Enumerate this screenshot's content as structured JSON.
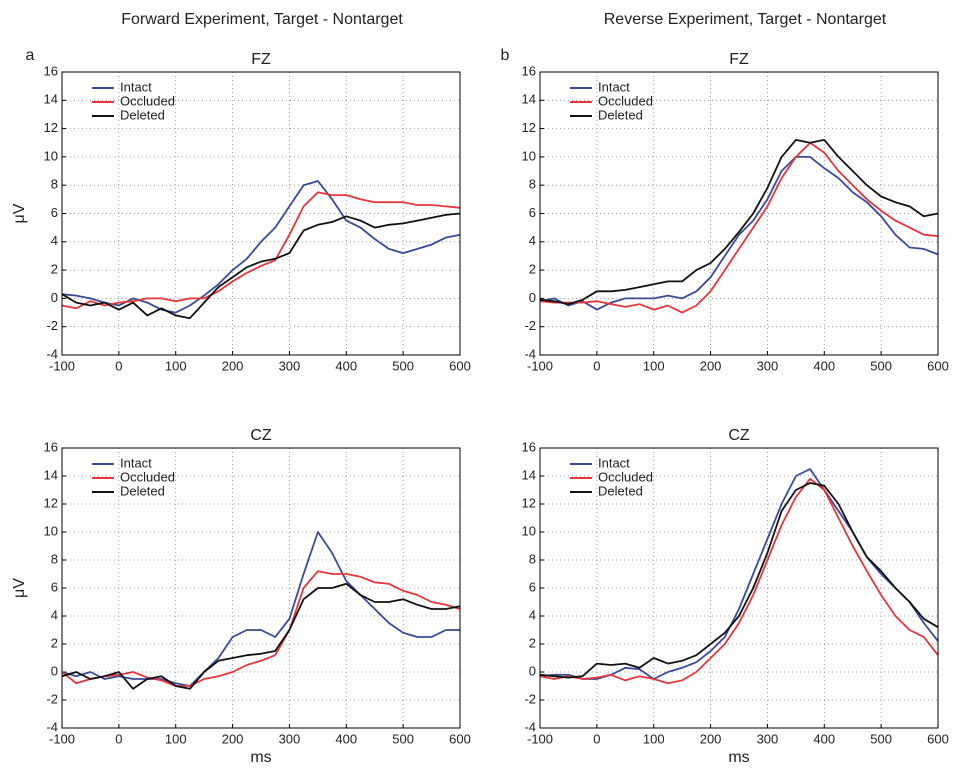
{
  "headers": [
    {
      "title": "Forward Experiment, Target - Nontarget",
      "letter": "a"
    },
    {
      "title": "Reverse Experiment, Target - Nontarget",
      "letter": "b"
    }
  ],
  "chart_data": [
    {
      "type": "line",
      "title": "FZ",
      "ylabel": "μV",
      "x": [
        -100,
        -75,
        -50,
        -25,
        0,
        25,
        50,
        75,
        100,
        125,
        150,
        175,
        200,
        225,
        250,
        275,
        300,
        325,
        350,
        375,
        400,
        425,
        450,
        475,
        500,
        525,
        550,
        575,
        600
      ],
      "series": [
        {
          "name": "Intact",
          "color": "#3a4a9a",
          "values": [
            0.3,
            0.2,
            0,
            -0.3,
            -0.5,
            0,
            -0.3,
            -0.8,
            -1,
            -0.5,
            0.2,
            1,
            2,
            2.8,
            4,
            5,
            6.5,
            8,
            8.3,
            7,
            5.5,
            5,
            4.2,
            3.5,
            3.2,
            3.5,
            3.8,
            4.3,
            4.5
          ]
        },
        {
          "name": "Occluded",
          "color": "#e8353a",
          "values": [
            -0.5,
            -0.7,
            -0.2,
            -0.5,
            -0.3,
            -0.2,
            0,
            0,
            -0.2,
            0,
            0,
            0.5,
            1.2,
            1.8,
            2.3,
            2.7,
            4.5,
            6.5,
            7.5,
            7.3,
            7.3,
            7,
            6.8,
            6.8,
            6.8,
            6.6,
            6.6,
            6.5,
            6.4
          ]
        },
        {
          "name": "Deleted",
          "color": "#111111",
          "values": [
            0.3,
            -0.3,
            -0.5,
            -0.3,
            -0.8,
            -0.3,
            -1.2,
            -0.7,
            -1.2,
            -1.4,
            -0.3,
            0.8,
            1.5,
            2.2,
            2.6,
            2.8,
            3.2,
            4.8,
            5.2,
            5.4,
            5.8,
            5.5,
            5,
            5.2,
            5.3,
            5.5,
            5.7,
            5.9,
            6
          ]
        }
      ],
      "xlim": [
        -100,
        600
      ],
      "xticks": [
        -100,
        0,
        100,
        200,
        300,
        400,
        500,
        600
      ],
      "ylim": [
        -4,
        16
      ],
      "yticks": [
        -4,
        -2,
        0,
        2,
        4,
        6,
        8,
        10,
        12,
        14,
        16
      ],
      "grid": true,
      "legend": "upper-left"
    },
    {
      "type": "line",
      "title": "FZ",
      "x": [
        -100,
        -75,
        -50,
        -25,
        0,
        25,
        50,
        75,
        100,
        125,
        150,
        175,
        200,
        225,
        250,
        275,
        300,
        325,
        350,
        375,
        400,
        425,
        450,
        475,
        500,
        525,
        550,
        575,
        600
      ],
      "series": [
        {
          "name": "Intact",
          "color": "#3a4a9a",
          "values": [
            -0.2,
            0,
            -0.5,
            -0.2,
            -0.8,
            -0.3,
            0,
            0,
            0,
            0.2,
            0,
            0.5,
            1.5,
            3,
            4.5,
            5.5,
            7,
            9,
            10,
            10,
            9.2,
            8.5,
            7.5,
            6.8,
            5.8,
            4.5,
            3.6,
            3.5,
            3.1
          ]
        },
        {
          "name": "Occluded",
          "color": "#e8353a",
          "values": [
            -0.2,
            -0.3,
            -0.3,
            -0.3,
            -0.2,
            -0.4,
            -0.6,
            -0.4,
            -0.8,
            -0.5,
            -1,
            -0.5,
            0.5,
            2,
            3.5,
            5,
            6.5,
            8.5,
            10,
            11,
            10.3,
            9,
            8,
            7,
            6.2,
            5.5,
            5,
            4.5,
            4.4
          ]
        },
        {
          "name": "Deleted",
          "color": "#111111",
          "values": [
            -0.1,
            -0.2,
            -0.4,
            -0.1,
            0.5,
            0.5,
            0.6,
            0.8,
            1,
            1.2,
            1.2,
            2,
            2.5,
            3.5,
            4.7,
            6,
            7.8,
            10,
            11.2,
            11,
            11.2,
            10,
            9,
            8,
            7.2,
            6.8,
            6.5,
            5.8,
            6
          ]
        }
      ],
      "xlim": [
        -100,
        600
      ],
      "xticks": [
        -100,
        0,
        100,
        200,
        300,
        400,
        500,
        600
      ],
      "ylim": [
        -4,
        16
      ],
      "yticks": [
        -4,
        -2,
        0,
        2,
        4,
        6,
        8,
        10,
        12,
        14,
        16
      ],
      "grid": true,
      "legend": "upper-left"
    },
    {
      "type": "line",
      "title": "CZ",
      "ylabel": "μV",
      "xlabel": "ms",
      "x": [
        -100,
        -75,
        -50,
        -25,
        0,
        25,
        50,
        75,
        100,
        125,
        150,
        175,
        200,
        225,
        250,
        275,
        300,
        325,
        350,
        375,
        400,
        425,
        450,
        475,
        500,
        525,
        550,
        575,
        600
      ],
      "series": [
        {
          "name": "Intact",
          "color": "#3a4a9a",
          "values": [
            0,
            -0.3,
            0,
            -0.5,
            -0.3,
            -0.5,
            -0.5,
            -0.5,
            -0.8,
            -1,
            0,
            1,
            2.5,
            3,
            3,
            2.5,
            3.8,
            7,
            10,
            8.5,
            6.5,
            5.5,
            4.5,
            3.5,
            2.8,
            2.5,
            2.5,
            3,
            3
          ]
        },
        {
          "name": "Occluded",
          "color": "#e8353a",
          "values": [
            0,
            -0.8,
            -0.5,
            -0.3,
            -0.2,
            0,
            -0.4,
            -0.6,
            -1,
            -1,
            -0.5,
            -0.3,
            0,
            0.5,
            0.8,
            1.2,
            3,
            6,
            7.2,
            7,
            7,
            6.8,
            6.4,
            6.3,
            5.8,
            5.5,
            5,
            4.8,
            4.5
          ]
        },
        {
          "name": "Deleted",
          "color": "#111111",
          "values": [
            -0.3,
            0,
            -0.5,
            -0.3,
            0,
            -1.2,
            -0.5,
            -0.3,
            -1,
            -1.2,
            0,
            0.8,
            1,
            1.2,
            1.3,
            1.5,
            3,
            5.2,
            6,
            6,
            6.3,
            5.5,
            5,
            5,
            5.2,
            4.8,
            4.5,
            4.5,
            4.7
          ]
        }
      ],
      "xlim": [
        -100,
        600
      ],
      "xticks": [
        -100,
        0,
        100,
        200,
        300,
        400,
        500,
        600
      ],
      "ylim": [
        -4,
        16
      ],
      "yticks": [
        -4,
        -2,
        0,
        2,
        4,
        6,
        8,
        10,
        12,
        14,
        16
      ],
      "grid": true,
      "legend": "upper-left"
    },
    {
      "type": "line",
      "title": "CZ",
      "xlabel": "ms",
      "x": [
        -100,
        -75,
        -50,
        -25,
        0,
        25,
        50,
        75,
        100,
        125,
        150,
        175,
        200,
        225,
        250,
        275,
        300,
        325,
        350,
        375,
        400,
        425,
        450,
        475,
        500,
        525,
        550,
        575,
        600
      ],
      "series": [
        {
          "name": "Intact",
          "color": "#3a4a9a",
          "values": [
            -0.3,
            -0.2,
            -0.2,
            -0.5,
            -0.5,
            -0.2,
            0.3,
            0.2,
            -0.5,
            0,
            0.3,
            0.7,
            1.5,
            2.5,
            4.5,
            7,
            9.5,
            12,
            14,
            14.5,
            13,
            11.5,
            10,
            8.2,
            7,
            6,
            5,
            3.5,
            2.2
          ]
        },
        {
          "name": "Occluded",
          "color": "#e8353a",
          "values": [
            -0.3,
            -0.5,
            -0.3,
            -0.5,
            -0.4,
            -0.2,
            -0.6,
            -0.3,
            -0.5,
            -0.8,
            -0.6,
            0,
            1,
            2,
            3.5,
            5.5,
            8,
            10.5,
            12.5,
            13.8,
            13,
            11,
            9,
            7.2,
            5.5,
            4,
            3,
            2.5,
            1.2
          ]
        },
        {
          "name": "Deleted",
          "color": "#111111",
          "values": [
            -0.2,
            -0.3,
            -0.4,
            -0.3,
            0.6,
            0.5,
            0.6,
            0.3,
            1,
            0.6,
            0.8,
            1.2,
            2,
            2.8,
            4,
            6,
            8.5,
            11.5,
            13,
            13.5,
            13.3,
            12,
            10,
            8.2,
            7.2,
            6,
            5,
            3.8,
            3.2
          ]
        }
      ],
      "xlim": [
        -100,
        600
      ],
      "xticks": [
        -100,
        0,
        100,
        200,
        300,
        400,
        500,
        600
      ],
      "ylim": [
        -4,
        16
      ],
      "yticks": [
        -4,
        -2,
        0,
        2,
        4,
        6,
        8,
        10,
        12,
        14,
        16
      ],
      "grid": true,
      "legend": "upper-left"
    }
  ]
}
